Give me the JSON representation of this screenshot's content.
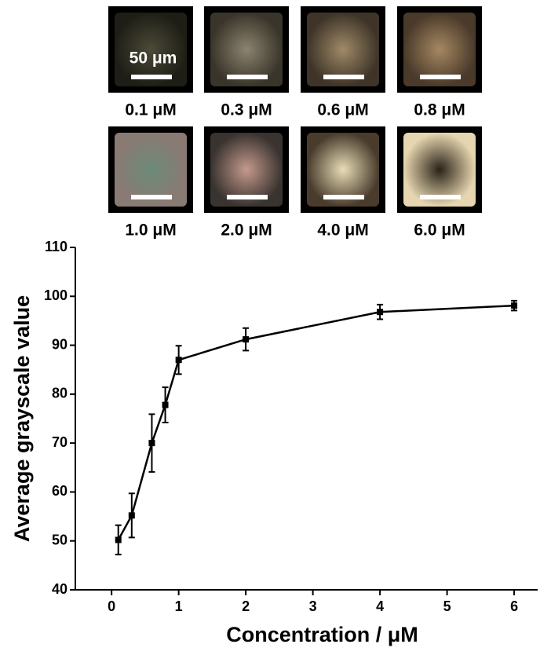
{
  "images": {
    "scale_label": "50 μm",
    "captions": [
      "0.1 μM",
      "0.3 μM",
      "0.6 μM",
      "0.8 μM",
      "1.0 μM",
      "2.0 μM",
      "4.0 μM",
      "6.0 μM"
    ]
  },
  "chart_data": {
    "type": "line",
    "x_label": "Concentration / μM",
    "y_label": "Average grayscale value",
    "x": [
      0.1,
      0.3,
      0.6,
      0.8,
      1.0,
      2,
      4,
      6
    ],
    "series": [
      {
        "color": "#000000",
        "values": [
          50.2,
          55.2,
          70.0,
          77.8,
          87.0,
          91.2,
          96.8,
          98.1
        ],
        "errors": [
          3.0,
          4.5,
          5.9,
          3.6,
          2.9,
          2.3,
          1.5,
          1.0
        ]
      }
    ],
    "xlim": [
      -0.54,
      6.35
    ],
    "ylim": [
      40,
      110
    ],
    "xticks": [
      0,
      1,
      2,
      3,
      4,
      5,
      6
    ],
    "yticks": [
      40,
      50,
      60,
      70,
      80,
      90,
      100,
      110
    ]
  }
}
